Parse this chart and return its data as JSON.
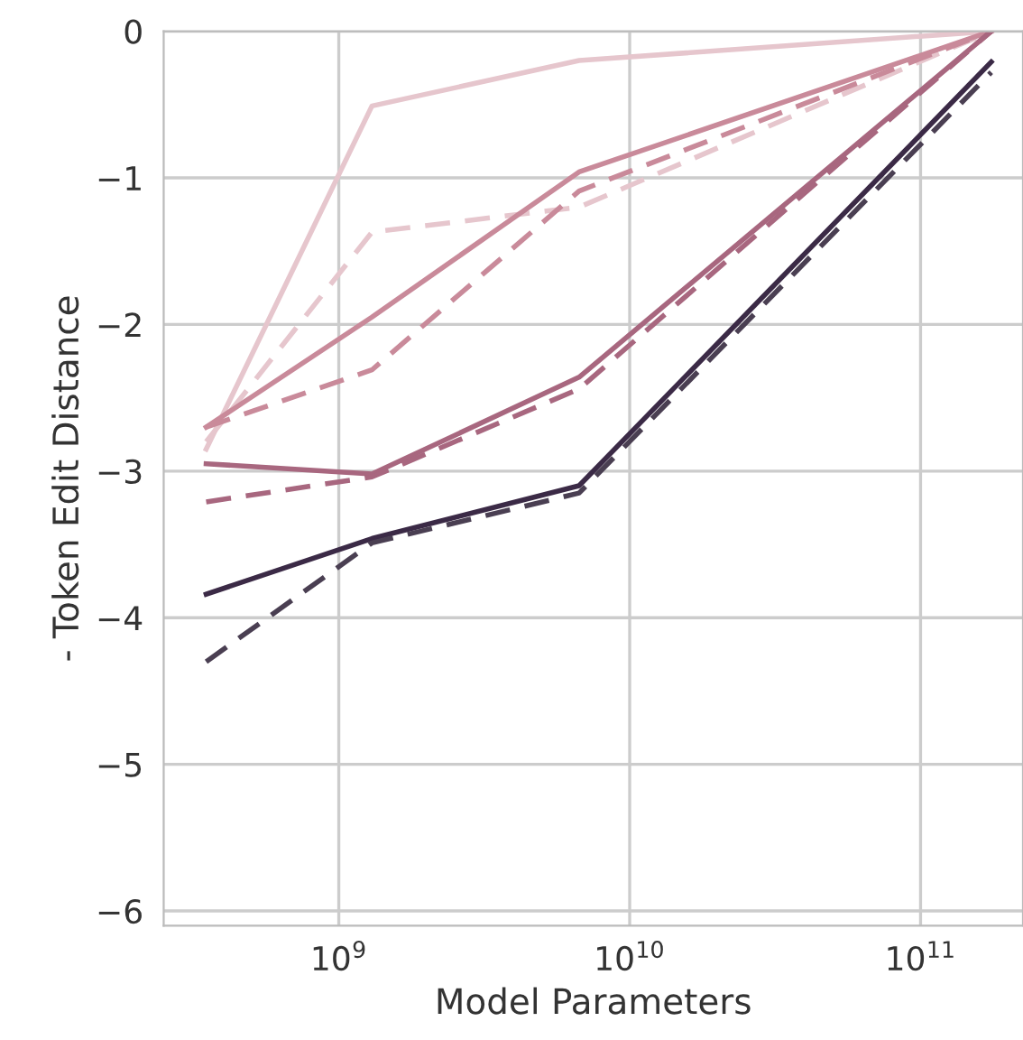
{
  "chart_data": {
    "type": "line",
    "xlabel": "Model Parameters",
    "ylabel": "- Token Edit Distance",
    "log": "x",
    "grid": true,
    "marker": "none",
    "x": [
      350000000,
      1300000000,
      6700000000,
      175000000000
    ],
    "xlim": [
      250000000,
      225000000000
    ],
    "xticks": [
      {
        "value": 1000000000,
        "label": "10$^{9}$"
      },
      {
        "value": 10000000000,
        "label": "10$^{10}$"
      },
      {
        "value": 100000000000,
        "label": "10$^{11}$"
      }
    ],
    "ylim": [
      -6.1,
      0
    ],
    "yticks": [
      {
        "value": -6,
        "label": "−6"
      },
      {
        "value": -5,
        "label": "−5"
      },
      {
        "value": -4,
        "label": "−4"
      },
      {
        "value": -3,
        "label": "−3"
      },
      {
        "value": -2,
        "label": "−2"
      },
      {
        "value": -1,
        "label": "−1"
      },
      0
    ],
    "series": [
      {
        "color": "#e6c6cd",
        "line_style": "solid",
        "values": [
          -2.85,
          -0.51,
          -0.2,
          0
        ]
      },
      {
        "color": "#e6c6cd",
        "line_style": "dashed",
        "values": [
          -2.8,
          -1.37,
          -1.2,
          0
        ]
      },
      {
        "color": "#c98a9a",
        "line_style": "solid",
        "values": [
          -2.7,
          -1.95,
          -0.96,
          0
        ]
      },
      {
        "color": "#c98a9a",
        "line_style": "dashed",
        "values": [
          -2.7,
          -2.31,
          -1.09,
          0
        ]
      },
      {
        "color": "#a8677f",
        "line_style": "solid",
        "values": [
          -2.95,
          -3.02,
          -2.36,
          0
        ]
      },
      {
        "color": "#a8677f",
        "line_style": "dashed",
        "values": [
          -3.21,
          -3.04,
          -2.44,
          0
        ]
      },
      {
        "color": "#3b2a46",
        "line_style": "solid",
        "values": [
          -3.84,
          -3.46,
          -3.1,
          -0.21
        ]
      },
      {
        "color": "#4a3f52",
        "line_style": "dashed",
        "values": [
          -4.3,
          -3.49,
          -3.15,
          -0.28
        ]
      }
    ]
  }
}
